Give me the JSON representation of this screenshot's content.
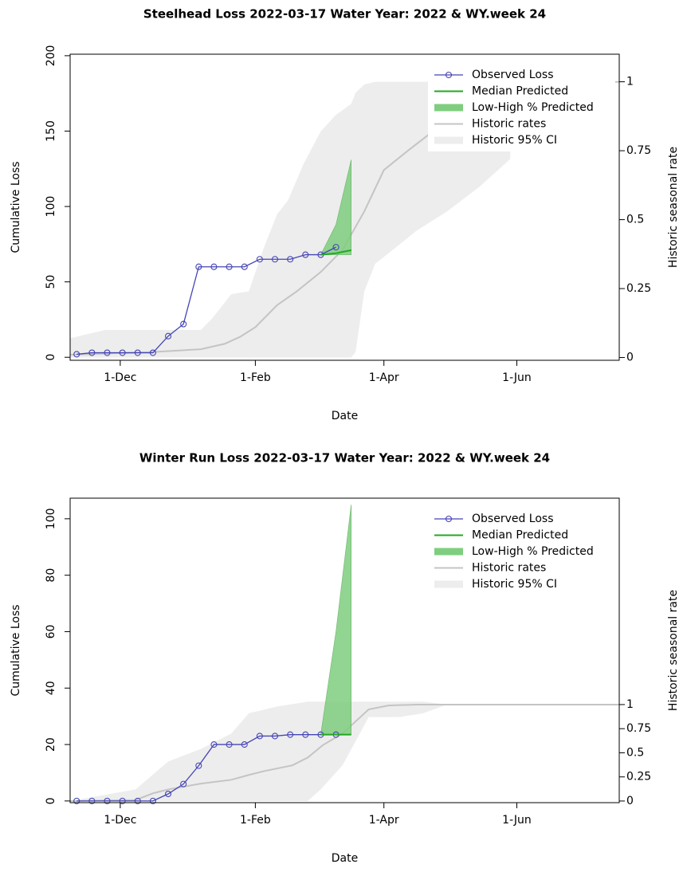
{
  "chart_data": [
    {
      "type": "line",
      "title": "Steelhead Loss 2022-03-17  Water Year: 2022 & WY.week 24",
      "x_label": "Date",
      "y_label": "Cumulative Loss",
      "y2_label": "Historic seasonal rate",
      "xlim": [
        "8-Nov",
        "18-Jul"
      ],
      "xticks": [
        "1-Dec",
        "1-Feb",
        "1-Apr",
        "1-Jun"
      ],
      "ylim": [
        -2,
        201
      ],
      "yticks": [
        0,
        50,
        100,
        150,
        200
      ],
      "y2lim": [
        -0.01,
        1.1
      ],
      "y2ticks": [
        0,
        0.25,
        0.5,
        0.75,
        1
      ],
      "legend": "topright",
      "series": [
        {
          "name": "Observed Loss",
          "color": "#4545b5",
          "marker": "circle",
          "x": [
            "11-Nov",
            "18-Nov",
            "25-Nov",
            "2-Dec",
            "9-Dec",
            "16-Dec",
            "23-Dec",
            "30-Dec",
            "6-Jan",
            "13-Jan",
            "20-Jan",
            "27-Jan",
            "3-Feb",
            "10-Feb",
            "17-Feb",
            "24-Feb",
            "3-Mar",
            "10-Mar"
          ],
          "values": [
            2,
            3,
            3,
            3,
            3,
            3,
            14,
            22,
            60,
            60,
            60,
            60,
            65,
            65,
            65,
            68,
            68,
            73
          ]
        },
        {
          "name": "Median Predicted",
          "color": "#22a822",
          "x": [
            "3-Mar",
            "10-Mar",
            "17-Mar"
          ],
          "values": [
            68,
            69,
            71
          ]
        },
        {
          "name": "Low-High % Predicted",
          "color": "#7fce7f",
          "x": [
            "3-Mar",
            "10-Mar",
            "17-Mar"
          ],
          "low": [
            68,
            68,
            68
          ],
          "high": [
            68,
            88,
            131
          ]
        },
        {
          "name": "Historic rates",
          "color": "#c4c4c4",
          "axis": "y2",
          "x": [
            "8-Nov",
            "16-Dec",
            "7-Jan",
            "18-Jan",
            "25-Jan",
            "1-Feb",
            "11-Feb",
            "20-Feb",
            "3-Mar",
            "13-Mar",
            "23-Mar",
            "1-Apr",
            "12-Apr",
            "30-Apr",
            "22-May",
            "20-Jun",
            "18-Jul"
          ],
          "values": [
            0.01,
            0.02,
            0.03,
            0.05,
            0.075,
            0.11,
            0.19,
            0.24,
            0.31,
            0.39,
            0.53,
            0.68,
            0.75,
            0.86,
            0.95,
            0.99,
            1
          ]
        },
        {
          "name": "Historic 95% CI",
          "color": "#ededed",
          "axis": "y2",
          "x": [
            "8-Nov",
            "24-Nov",
            "7-Jan",
            "12-Jan",
            "21-Jan",
            "29-Jan",
            "5-Feb",
            "11-Feb",
            "16-Feb",
            "23-Feb",
            "3-Mar",
            "10-Mar",
            "17-Mar",
            "19-Mar",
            "23-Mar",
            "28-Mar",
            "5-Apr",
            "16-Apr",
            "30-Apr",
            "15-May",
            "29-May"
          ],
          "low": [
            0,
            0,
            0,
            0,
            0,
            0,
            0,
            0,
            0,
            0,
            0,
            0,
            0,
            0.02,
            0.24,
            0.34,
            0.39,
            0.46,
            0.53,
            0.62,
            0.72
          ],
          "high": [
            0.07,
            0.1,
            0.1,
            0.14,
            0.23,
            0.24,
            0.4,
            0.52,
            0.57,
            0.7,
            0.82,
            0.88,
            0.92,
            0.96,
            0.99,
            1,
            1,
            1,
            1,
            1,
            1
          ]
        }
      ]
    },
    {
      "type": "line",
      "title": "Winter Run Loss 2022-03-17  Water Year: 2022 & WY.week 24",
      "x_label": "Date",
      "y_label": "Cumulative Loss",
      "y2_label": "Historic seasonal rate",
      "xlim": [
        "8-Nov",
        "18-Jul"
      ],
      "xticks": [
        "1-Dec",
        "1-Feb",
        "1-Apr",
        "1-Jun"
      ],
      "ylim": [
        -0.6,
        107.3
      ],
      "yticks": [
        0,
        20,
        40,
        60,
        80,
        100
      ],
      "y2lim": [
        -0.017,
        3.14
      ],
      "y2ticks": [
        0,
        0.25,
        0.5,
        0.75,
        1
      ],
      "legend": "topright",
      "series": [
        {
          "name": "Observed Loss",
          "color": "#4545b5",
          "marker": "circle",
          "x": [
            "11-Nov",
            "18-Nov",
            "25-Nov",
            "2-Dec",
            "9-Dec",
            "16-Dec",
            "23-Dec",
            "30-Dec",
            "6-Jan",
            "13-Jan",
            "20-Jan",
            "27-Jan",
            "3-Feb",
            "10-Feb",
            "17-Feb",
            "24-Feb",
            "3-Mar",
            "10-Mar"
          ],
          "values": [
            0,
            0,
            0,
            0,
            0,
            0,
            2.5,
            6,
            12.5,
            20,
            20,
            20,
            23,
            23,
            23.5,
            23.5,
            23.5,
            23.5
          ]
        },
        {
          "name": "Median Predicted",
          "color": "#22a822",
          "x": [
            "3-Mar",
            "10-Mar",
            "17-Mar"
          ],
          "values": [
            23.5,
            23.5,
            23.5
          ]
        },
        {
          "name": "Low-High % Predicted",
          "color": "#7fce7f",
          "x": [
            "3-Mar",
            "10-Mar",
            "17-Mar"
          ],
          "low": [
            23.5,
            23.5,
            23.5
          ],
          "high": [
            23.5,
            60,
            105
          ]
        },
        {
          "name": "Historic rates",
          "color": "#c4c4c4",
          "axis": "y2",
          "x": [
            "8-Nov",
            "8-Dec",
            "16-Dec",
            "23-Dec",
            "7-Jan",
            "21-Jan",
            "29-Jan",
            "5-Feb",
            "18-Feb",
            "25-Feb",
            "4-Mar",
            "13-Mar",
            "25-Mar",
            "3-Apr",
            "16-Apr",
            "30-Apr",
            "18-Jul"
          ],
          "values": [
            0,
            0.01,
            0.08,
            0.12,
            0.18,
            0.22,
            0.27,
            0.31,
            0.37,
            0.45,
            0.58,
            0.7,
            0.95,
            0.99,
            1,
            1,
            1
          ]
        },
        {
          "name": "Historic 95% CI",
          "color": "#ededed",
          "axis": "y2",
          "x": [
            "8-Nov",
            "8-Dec",
            "23-Dec",
            "7-Jan",
            "21-Jan",
            "29-Jan",
            "11-Feb",
            "25-Feb",
            "3-Mar",
            "13-Mar",
            "20-Mar",
            "25-Mar",
            "8-Apr",
            "19-Apr",
            "30-Apr"
          ],
          "low": [
            0,
            0,
            0,
            0,
            0,
            0,
            0,
            0,
            0.12,
            0.37,
            0.66,
            0.87,
            0.87,
            0.91,
            1
          ],
          "high": [
            0,
            0.12,
            0.41,
            0.54,
            0.7,
            0.91,
            0.98,
            1.03,
            1.03,
            1.03,
            1.03,
            1.03,
            1.03,
            1.03,
            1
          ]
        }
      ]
    }
  ]
}
